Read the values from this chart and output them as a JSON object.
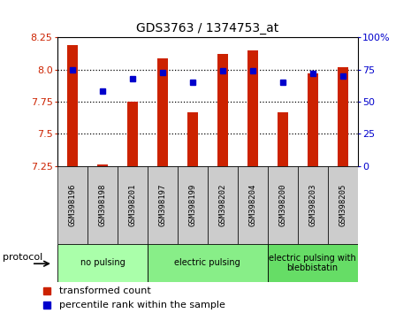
{
  "title": "GDS3763 / 1374753_at",
  "samples": [
    "GSM398196",
    "GSM398198",
    "GSM398201",
    "GSM398197",
    "GSM398199",
    "GSM398202",
    "GSM398204",
    "GSM398200",
    "GSM398203",
    "GSM398205"
  ],
  "transformed_count": [
    8.19,
    7.26,
    7.75,
    8.09,
    7.67,
    8.12,
    8.15,
    7.67,
    7.97,
    8.02
  ],
  "percentile_rank": [
    75,
    58,
    68,
    73,
    65,
    74,
    74,
    65,
    72,
    70
  ],
  "ylim_left": [
    7.25,
    8.25
  ],
  "ylim_right": [
    0,
    100
  ],
  "yticks_left": [
    7.25,
    7.5,
    7.75,
    8.0,
    8.25
  ],
  "yticks_right": [
    0,
    25,
    50,
    75,
    100
  ],
  "bar_color": "#cc2200",
  "dot_color": "#0000cc",
  "bg_color": "#ffffff",
  "sample_box_color": "#cccccc",
  "groups": [
    {
      "label": "no pulsing",
      "start": 0,
      "end": 3,
      "color": "#aaffaa"
    },
    {
      "label": "electric pulsing",
      "start": 3,
      "end": 7,
      "color": "#88ee88"
    },
    {
      "label": "electric pulsing with\nblebbistatin",
      "start": 7,
      "end": 10,
      "color": "#66dd66"
    }
  ],
  "legend_bar_label": "transformed count",
  "legend_dot_label": "percentile rank within the sample",
  "protocol_label": "protocol",
  "left_tick_color": "#cc2200",
  "right_tick_color": "#0000cc",
  "grid_yticks": [
    7.5,
    7.75,
    8.0
  ],
  "bar_width": 0.35
}
